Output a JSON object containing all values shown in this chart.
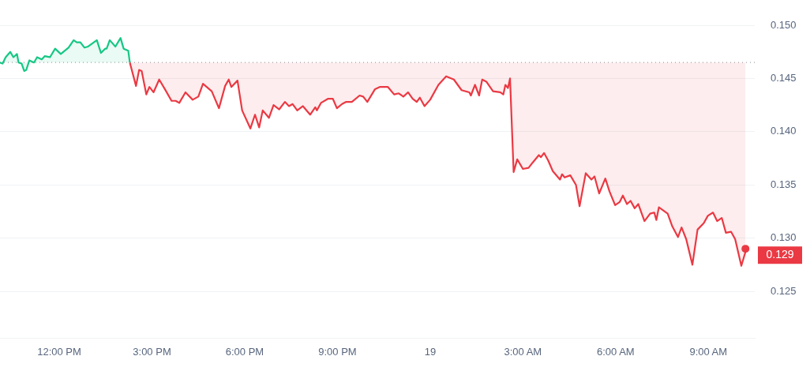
{
  "chart_data": {
    "type": "line",
    "xlim": [
      "--01-18T10:05",
      "--01-19T10:30"
    ],
    "ylim": [
      0.1206,
      0.15
    ],
    "xticks": [
      {
        "value": "--01-18T12:00",
        "label": "12:00 PM"
      },
      {
        "value": "--01-18T15:00",
        "label": "3:00 PM"
      },
      {
        "value": "--01-18T18:00",
        "label": "6:00 PM"
      },
      {
        "value": "--01-18T21:00",
        "label": "9:00 PM"
      },
      {
        "value": "--01-19",
        "label": "19"
      },
      {
        "value": "--01-19T03:00",
        "label": "3:00 AM"
      },
      {
        "value": "--01-19T06:00",
        "label": "6:00 AM"
      },
      {
        "value": "--01-19T09:00",
        "label": "9:00 AM"
      }
    ],
    "yticks": [
      0.125,
      {
        "value": 0.13,
        "label": "0.130"
      },
      0.135,
      {
        "value": 0.14,
        "label": "0.140"
      },
      0.145,
      {
        "value": 0.15,
        "label": "0.150"
      }
    ],
    "grid": "y",
    "legend": false,
    "line_style": "solid",
    "ref_lines": [
      {
        "axis": "y",
        "value": 0.1465,
        "color": "#a0a4ab",
        "line_style": "dotted"
      }
    ],
    "annotations": [
      {
        "text": "0.129",
        "x": "--01-19T10:12",
        "y": 0.129
      }
    ],
    "series": [
      {
        "color": "#16c784",
        "x": [
          "--01-18T10:05",
          "--01-18T10:10",
          "--01-18T10:16",
          "--01-18T10:25",
          "--01-18T10:31",
          "--01-18T10:38",
          "--01-18T10:41",
          "--01-18T10:47",
          "--01-18T10:52",
          "--01-18T10:56",
          "--01-18T11:02",
          "--01-18T11:11",
          "--01-18T11:17",
          "--01-18T11:26",
          "--01-18T11:32",
          "--01-18T11:42",
          "--01-18T11:52",
          "--01-18T12:03",
          "--01-18T12:18",
          "--01-18T12:28",
          "--01-18T12:34",
          "--01-18T12:41",
          "--01-18T12:49",
          "--01-18T12:56",
          "--01-18T13:13",
          "--01-18T13:21",
          "--01-18T13:29",
          "--01-18T13:32",
          "--01-18T13:38",
          "--01-18T13:49",
          "--01-18T13:59",
          "--01-18T14:05",
          "--01-18T14:14",
          "--01-18T14:17"
        ],
        "values": [
          0.1465,
          0.1464,
          0.147,
          0.1475,
          0.147,
          0.1473,
          0.1465,
          0.1464,
          0.1457,
          0.1458,
          0.1467,
          0.1465,
          0.147,
          0.1468,
          0.1471,
          0.147,
          0.1478,
          0.1473,
          0.1479,
          0.1486,
          0.1484,
          0.1484,
          0.1479,
          0.148,
          0.1486,
          0.1474,
          0.1478,
          0.1478,
          0.1486,
          0.148,
          0.1488,
          0.1478,
          0.1476,
          0.1465
        ]
      },
      {
        "color": "#ea3943",
        "x": [
          "--01-18T14:17",
          "--01-18T14:29",
          "--01-18T14:35",
          "--01-18T14:40",
          "--01-18T14:49",
          "--01-18T14:55",
          "--01-18T15:03",
          "--01-18T15:14",
          "--01-18T15:25",
          "--01-18T15:38",
          "--01-18T15:46",
          "--01-18T15:53",
          "--01-18T16:05",
          "--01-18T16:19",
          "--01-18T16:30",
          "--01-18T16:39",
          "--01-18T16:56",
          "--01-18T17:10",
          "--01-18T17:22",
          "--01-18T17:29",
          "--01-18T17:34",
          "--01-18T17:46",
          "--01-18T17:55",
          "--01-18T18:11",
          "--01-18T18:20",
          "--01-18T18:28",
          "--01-18T18:35",
          "--01-18T18:47",
          "--01-18T18:56",
          "--01-18T19:07",
          "--01-18T19:18",
          "--01-18T19:26",
          "--01-18T19:33",
          "--01-18T19:42",
          "--01-18T19:53",
          "--01-18T20:07",
          "--01-18T20:17",
          "--01-18T20:20",
          "--01-18T20:28",
          "--01-18T20:42",
          "--01-18T20:51",
          "--01-18T20:59",
          "--01-18T21:09",
          "--01-18T21:17",
          "--01-18T21:28",
          "--01-18T21:43",
          "--01-18T21:50",
          "--01-18T21:58",
          "--01-18T22:13",
          "--01-18T22:22",
          "--01-18T22:38",
          "--01-18T22:50",
          "--01-18T22:59",
          "--01-18T23:08",
          "--01-18T23:17",
          "--01-18T23:26",
          "--01-18T23:34",
          "--01-18T23:40",
          "--01-18T23:49",
          "--01-19T00:00",
          "--01-19T00:16",
          "--01-19T00:31",
          "--01-19T00:46",
          "--01-19T01:01",
          "--01-19T01:16",
          "--01-19T01:19",
          "--01-19T01:27",
          "--01-19T01:35",
          "--01-19T01:41",
          "--01-19T01:49",
          "--01-19T02:02",
          "--01-19T02:16",
          "--01-19T02:22",
          "--01-19T02:26",
          "--01-19T02:31",
          "--01-19T02:35",
          "--01-19T02:42",
          "--01-19T02:49",
          "--01-19T03:00",
          "--01-19T03:11",
          "--01-19T03:19",
          "--01-19T03:31",
          "--01-19T03:35",
          "--01-19T03:41",
          "--01-19T03:49",
          "--01-19T03:58",
          "--01-19T04:12",
          "--01-19T04:16",
          "--01-19T04:21",
          "--01-19T04:32",
          "--01-19T04:43",
          "--01-19T04:50",
          "--01-19T05:02",
          "--01-19T05:13",
          "--01-19T05:19",
          "--01-19T05:28",
          "--01-19T05:40",
          "--01-19T05:48",
          "--01-19T05:59",
          "--01-19T06:08",
          "--01-19T06:14",
          "--01-19T06:22",
          "--01-19T06:29",
          "--01-19T06:37",
          "--01-19T06:44",
          "--01-19T06:56",
          "--01-19T07:07",
          "--01-19T07:15",
          "--01-19T07:19",
          "--01-19T07:24",
          "--01-19T07:41",
          "--01-19T07:50",
          "--01-19T08:01",
          "--01-19T08:08",
          "--01-19T08:17",
          "--01-19T08:29",
          "--01-19T08:39",
          "--01-19T08:51",
          "--01-19T08:59",
          "--01-19T09:09",
          "--01-19T09:17",
          "--01-19T09:26",
          "--01-19T09:34",
          "--01-19T09:44",
          "--01-19T09:52",
          "--01-19T10:04",
          "--01-19T10:12"
        ],
        "values": [
          0.1465,
          0.1443,
          0.1458,
          0.1457,
          0.1435,
          0.1442,
          0.1437,
          0.1449,
          0.144,
          0.1429,
          0.1429,
          0.1427,
          0.1437,
          0.143,
          0.1433,
          0.1445,
          0.1438,
          0.1422,
          0.1443,
          0.1449,
          0.1442,
          0.1448,
          0.142,
          0.1403,
          0.1416,
          0.1404,
          0.142,
          0.1413,
          0.1425,
          0.1421,
          0.1428,
          0.1424,
          0.1426,
          0.142,
          0.1424,
          0.1416,
          0.1423,
          0.142,
          0.1427,
          0.1431,
          0.1431,
          0.1422,
          0.1426,
          0.1428,
          0.1428,
          0.1434,
          0.1433,
          0.1428,
          0.144,
          0.1442,
          0.1442,
          0.1435,
          0.1436,
          0.1433,
          0.1437,
          0.1431,
          0.1428,
          0.1432,
          0.1424,
          0.143,
          0.1444,
          0.1452,
          0.1449,
          0.1439,
          0.1437,
          0.1434,
          0.1444,
          0.1434,
          0.1449,
          0.1447,
          0.1438,
          0.1437,
          0.1435,
          0.1444,
          0.1441,
          0.145,
          0.1362,
          0.1374,
          0.1365,
          0.1366,
          0.1371,
          0.1378,
          0.1376,
          0.138,
          0.1373,
          0.1363,
          0.1355,
          0.136,
          0.1357,
          0.1359,
          0.135,
          0.133,
          0.1361,
          0.1355,
          0.1358,
          0.1342,
          0.1356,
          0.1344,
          0.1331,
          0.1334,
          0.134,
          0.1332,
          0.1335,
          0.1328,
          0.1332,
          0.1316,
          0.1323,
          0.1324,
          0.1317,
          0.1329,
          0.1323,
          0.1311,
          0.1301,
          0.131,
          0.1299,
          0.1275,
          0.1308,
          0.1314,
          0.1321,
          0.1324,
          0.1316,
          0.1319,
          0.1305,
          0.1306,
          0.1299,
          0.1274,
          0.1287
        ]
      }
    ]
  }
}
